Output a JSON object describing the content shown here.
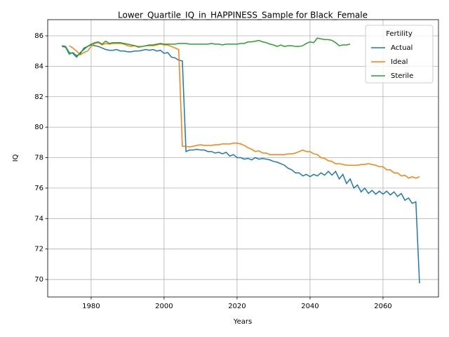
{
  "chart_data": {
    "type": "line",
    "title": "Lower_Quartile_IQ_in_HAPPINESS_Sample for Black_Female",
    "x_label": "Years",
    "y_label": "IQ",
    "x": [
      1972,
      1973,
      1974,
      1975,
      1976,
      1977,
      1978,
      1979,
      1980,
      1981,
      1982,
      1983,
      1984,
      1985,
      1986,
      1987,
      1988,
      1989,
      1990,
      1991,
      1992,
      1993,
      1994,
      1995,
      1996,
      1997,
      1998,
      1999,
      2000,
      2001,
      2002,
      2003,
      2004,
      2005,
      2006,
      2007,
      2008,
      2009,
      2010,
      2011,
      2012,
      2013,
      2014,
      2015,
      2016,
      2017,
      2018,
      2019,
      2020,
      2021,
      2022,
      2023,
      2024,
      2025,
      2026,
      2027,
      2028,
      2029,
      2030,
      2031,
      2032,
      2033,
      2034,
      2035,
      2036,
      2037,
      2038,
      2039,
      2040,
      2041,
      2042,
      2043,
      2044,
      2045,
      2046,
      2047,
      2048,
      2049,
      2050,
      2051,
      2052,
      2053,
      2054,
      2055,
      2056,
      2057,
      2058,
      2059,
      2060,
      2061,
      2062,
      2063,
      2064,
      2065,
      2066,
      2067,
      2068,
      2069,
      2070
    ],
    "series": [
      {
        "name": "Actual",
        "color": "#1f77b4",
        "values": [
          85.35,
          85.3,
          84.9,
          84.85,
          84.6,
          84.9,
          85.1,
          85.3,
          85.4,
          85.35,
          85.3,
          85.2,
          85.1,
          85.05,
          85.05,
          85.1,
          85.0,
          85.0,
          84.95,
          84.95,
          85.0,
          85.0,
          85.05,
          85.1,
          85.05,
          85.1,
          85.0,
          85.05,
          84.85,
          84.9,
          84.6,
          84.55,
          84.4,
          84.35,
          78.4,
          78.5,
          78.5,
          78.55,
          78.5,
          78.5,
          78.4,
          78.4,
          78.3,
          78.35,
          78.25,
          78.35,
          78.1,
          78.2,
          78.0,
          78.0,
          77.9,
          77.95,
          77.85,
          78.0,
          77.9,
          77.95,
          77.9,
          77.85,
          77.75,
          77.7,
          77.6,
          77.5,
          77.3,
          77.2,
          77.0,
          77.0,
          76.8,
          76.9,
          76.75,
          76.9,
          76.8,
          77.0,
          76.85,
          77.1,
          76.85,
          77.1,
          76.6,
          76.9,
          76.3,
          76.6,
          76.0,
          76.2,
          75.75,
          76.0,
          75.65,
          75.85,
          75.6,
          75.8,
          75.6,
          75.8,
          75.55,
          75.75,
          75.45,
          75.65,
          75.2,
          75.35,
          75.0,
          75.1,
          69.75
        ]
      },
      {
        "name": "Ideal",
        "color": "#ff7f0e",
        "values": [
          null,
          null,
          85.35,
          85.2,
          85.0,
          84.75,
          84.9,
          85.0,
          85.3,
          85.5,
          85.55,
          85.4,
          85.5,
          85.45,
          85.5,
          85.5,
          85.5,
          85.45,
          85.35,
          85.3,
          85.35,
          85.3,
          85.3,
          85.35,
          85.35,
          85.35,
          85.4,
          85.45,
          85.4,
          85.4,
          85.3,
          85.2,
          85.1,
          78.75,
          78.75,
          78.7,
          78.75,
          78.8,
          78.85,
          78.8,
          78.8,
          78.8,
          78.85,
          78.85,
          78.9,
          78.9,
          78.9,
          78.95,
          78.95,
          78.9,
          78.8,
          78.65,
          78.55,
          78.4,
          78.45,
          78.3,
          78.3,
          78.2,
          78.2,
          78.2,
          78.2,
          78.2,
          78.25,
          78.25,
          78.3,
          78.4,
          78.5,
          78.4,
          78.4,
          78.25,
          78.2,
          78.0,
          77.95,
          77.8,
          77.75,
          77.6,
          77.6,
          77.55,
          77.5,
          77.5,
          77.5,
          77.5,
          77.55,
          77.55,
          77.6,
          77.55,
          77.5,
          77.4,
          77.4,
          77.2,
          77.2,
          77.0,
          77.0,
          76.8,
          76.85,
          76.65,
          76.75,
          76.65,
          76.75
        ]
      },
      {
        "name": "Sterile",
        "color": "#2ca02c",
        "values": [
          85.3,
          85.25,
          84.8,
          84.9,
          84.7,
          84.8,
          85.2,
          85.3,
          85.45,
          85.55,
          85.6,
          85.45,
          85.65,
          85.5,
          85.55,
          85.55,
          85.55,
          85.5,
          85.45,
          85.4,
          85.35,
          85.25,
          85.3,
          85.35,
          85.4,
          85.4,
          85.45,
          85.5,
          85.45,
          85.45,
          85.45,
          85.45,
          85.5,
          85.5,
          85.5,
          85.45,
          85.45,
          85.45,
          85.45,
          85.45,
          85.45,
          85.5,
          85.45,
          85.45,
          85.4,
          85.45,
          85.45,
          85.45,
          85.45,
          85.5,
          85.5,
          85.6,
          85.6,
          85.65,
          85.7,
          85.6,
          85.55,
          85.45,
          85.4,
          85.3,
          85.4,
          85.3,
          85.35,
          85.35,
          85.3,
          85.3,
          85.35,
          85.5,
          85.6,
          85.55,
          85.85,
          85.8,
          85.75,
          85.75,
          85.7,
          85.55,
          85.35,
          85.4,
          85.4,
          85.45,
          null,
          null,
          null,
          null,
          null,
          null,
          null,
          null,
          null,
          null,
          null,
          null,
          null,
          null,
          null,
          null,
          null,
          null,
          null
        ]
      }
    ],
    "xlim": [
      1968.1,
      2075.2
    ],
    "ylim": [
      68.85,
      87.06
    ],
    "xticks": [
      1980,
      2000,
      2020,
      2040,
      2060
    ],
    "yticks": [
      70,
      72,
      74,
      76,
      78,
      80,
      82,
      84,
      86
    ],
    "grid": true,
    "legend_title": "Fertility",
    "legend_position": "upper right"
  }
}
